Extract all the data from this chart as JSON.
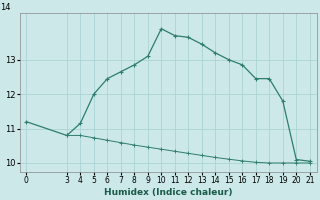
{
  "xlabel": "Humidex (Indice chaleur)",
  "bg_color": "#cce8e8",
  "grid_color": "#aad4d4",
  "line_color": "#2e7d6e",
  "xlim": [
    -0.5,
    21.5
  ],
  "ylim": [
    9.75,
    14.35
  ],
  "yticks": [
    10,
    11,
    12,
    13
  ],
  "ytick_labels": [
    "10",
    "11",
    "12",
    "13"
  ],
  "xticks": [
    0,
    3,
    4,
    5,
    6,
    7,
    8,
    9,
    10,
    11,
    12,
    13,
    14,
    15,
    16,
    17,
    18,
    19,
    20,
    21
  ],
  "line1_x": [
    0,
    3,
    4,
    5,
    6,
    7,
    8,
    9,
    10,
    11,
    12,
    13,
    14,
    15,
    16,
    17,
    18,
    19,
    20,
    21
  ],
  "line1_y": [
    11.2,
    10.8,
    11.15,
    12.0,
    12.45,
    12.65,
    12.85,
    13.1,
    13.9,
    13.7,
    13.65,
    13.45,
    13.2,
    13.0,
    12.85,
    12.45,
    12.45,
    11.8,
    10.1,
    10.05
  ],
  "line2_x": [
    3,
    4,
    5,
    6,
    7,
    8,
    9,
    10,
    11,
    12,
    13,
    14,
    15,
    16,
    17,
    18,
    19,
    20,
    21
  ],
  "line2_y": [
    10.8,
    10.8,
    10.73,
    10.66,
    10.59,
    10.52,
    10.46,
    10.4,
    10.34,
    10.28,
    10.22,
    10.16,
    10.11,
    10.06,
    10.02,
    10.0,
    10.0,
    10.0,
    10.0
  ]
}
